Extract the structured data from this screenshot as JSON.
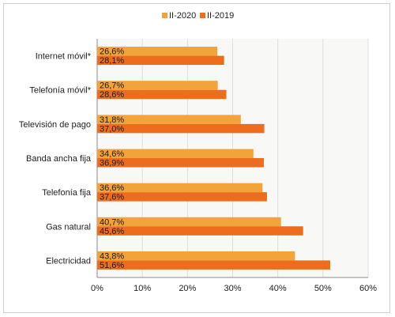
{
  "chart_data": {
    "type": "bar",
    "orientation": "horizontal",
    "categories": [
      "Internet móvil*",
      "Telefonía móvil*",
      "Televisión de pago",
      "Banda ancha fija",
      "Telefonía fija",
      "Gas natural",
      "Electricidad"
    ],
    "series": [
      {
        "name": "II-2020",
        "color": "#f2a33a",
        "values": [
          26.6,
          26.7,
          31.8,
          34.6,
          36.6,
          40.7,
          43.8
        ],
        "labels": [
          "26,6%",
          "26,7%",
          "31,8%",
          "34,6%",
          "36,6%",
          "40,7%",
          "43,8%"
        ]
      },
      {
        "name": "II-2019",
        "color": "#ec6d1e",
        "values": [
          28.1,
          28.6,
          37.0,
          36.9,
          37.6,
          45.6,
          51.6
        ],
        "labels": [
          "28,1%",
          "28,6%",
          "37,0%",
          "36,9%",
          "37,6%",
          "45,6%",
          "51,6%"
        ]
      }
    ],
    "xlim": [
      0,
      60
    ],
    "xticks": [
      0,
      10,
      20,
      30,
      40,
      50,
      60
    ],
    "xtick_labels": [
      "0%",
      "10%",
      "20%",
      "30%",
      "40%",
      "50%",
      "60%"
    ],
    "grid": "vertical",
    "legend": "top-center",
    "plot_background": "#f8f8f6",
    "grid_color": "#dedede"
  }
}
